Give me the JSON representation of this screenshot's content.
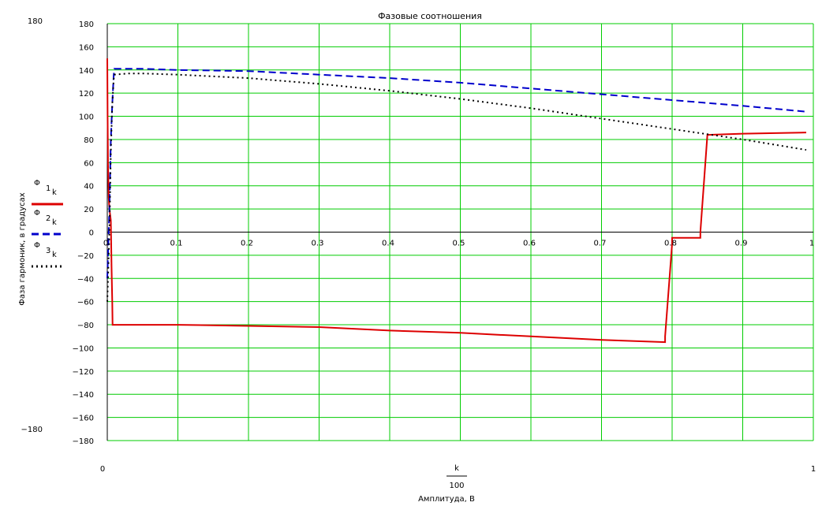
{
  "chart_data": {
    "type": "line",
    "title": "Фазовые соотношения",
    "xlabel": "Амплитуда, В",
    "ylabel": "Фаза гармоник, в градусах",
    "xlabel_fraction": {
      "numerator": "k",
      "denominator": "100"
    },
    "xlim": [
      0,
      1
    ],
    "ylim": [
      -180,
      180
    ],
    "y_outer_labels": {
      "top": "180",
      "bottom": "−180"
    },
    "x_outer_labels": {
      "left": "0",
      "right": "1"
    },
    "grid": true,
    "grid_color": "#00cc00",
    "x_ticks": [
      0,
      0.1,
      0.2,
      0.3,
      0.4,
      0.5,
      0.6,
      0.7,
      0.8,
      0.9,
      1
    ],
    "x_tick_labels": [
      "0",
      "0.1",
      "0.2",
      "0.3",
      "0.4",
      "0.5",
      "0.6",
      "0.7",
      "0.8",
      "0.9",
      "1"
    ],
    "y_ticks": [
      180,
      160,
      140,
      120,
      100,
      80,
      60,
      40,
      20,
      0,
      -20,
      -40,
      -60,
      -80,
      -100,
      -120,
      -140,
      -160,
      -180
    ],
    "y_tick_labels": [
      "180",
      "160",
      "140",
      "120",
      "100",
      "80",
      "60",
      "40",
      "20",
      "0",
      "−20",
      "−40",
      "−60",
      "−80",
      "−100",
      "−120",
      "−140",
      "−160",
      "−180"
    ],
    "legend_position": "left",
    "series": [
      {
        "name": "Φ 1 k",
        "legend_symbol": "Φ",
        "legend_index": "1",
        "legend_sub": "k",
        "color": "#dd0000",
        "dash": "solid",
        "x": [
          0.0,
          0.0005,
          0.001,
          0.002,
          0.003,
          0.004,
          0.005,
          0.006,
          0.007,
          0.0075,
          0.01,
          0.1,
          0.2,
          0.3,
          0.4,
          0.5,
          0.6,
          0.7,
          0.79,
          0.79,
          0.8,
          0.8,
          0.84,
          0.84,
          0.85,
          0.85,
          0.9,
          0.99
        ],
        "y": [
          150,
          100,
          60,
          30,
          20,
          15,
          10,
          -30,
          -60,
          -80,
          -80,
          -80,
          -81,
          -82,
          -85,
          -87,
          -90,
          -93,
          -95,
          -90,
          -10,
          -5,
          -5,
          0,
          85,
          84,
          85,
          86
        ]
      },
      {
        "name": "Φ 2 k",
        "legend_symbol": "Φ",
        "legend_index": "2",
        "legend_sub": "k",
        "color": "#0000cc",
        "dash": "dashed",
        "x": [
          0.0,
          0.003,
          0.005,
          0.007,
          0.009,
          0.01,
          0.03,
          0.05,
          0.1,
          0.2,
          0.3,
          0.4,
          0.5,
          0.6,
          0.7,
          0.8,
          0.9,
          0.99
        ],
        "y": [
          -40,
          20,
          80,
          110,
          135,
          141,
          141,
          141,
          140,
          139,
          136,
          133,
          129,
          124,
          119,
          114,
          109,
          104
        ]
      },
      {
        "name": "Φ 3 k",
        "legend_symbol": "Φ",
        "legend_index": "3",
        "legend_sub": "k",
        "color": "#000000",
        "dash": "dotted",
        "x": [
          0.0,
          0.003,
          0.005,
          0.007,
          0.009,
          0.01,
          0.03,
          0.05,
          0.1,
          0.2,
          0.3,
          0.4,
          0.5,
          0.6,
          0.7,
          0.8,
          0.9,
          0.99
        ],
        "y": [
          -60,
          0,
          70,
          110,
          132,
          136,
          137,
          137,
          136,
          133,
          128,
          122,
          115,
          107,
          98,
          89,
          80,
          71
        ]
      }
    ]
  }
}
